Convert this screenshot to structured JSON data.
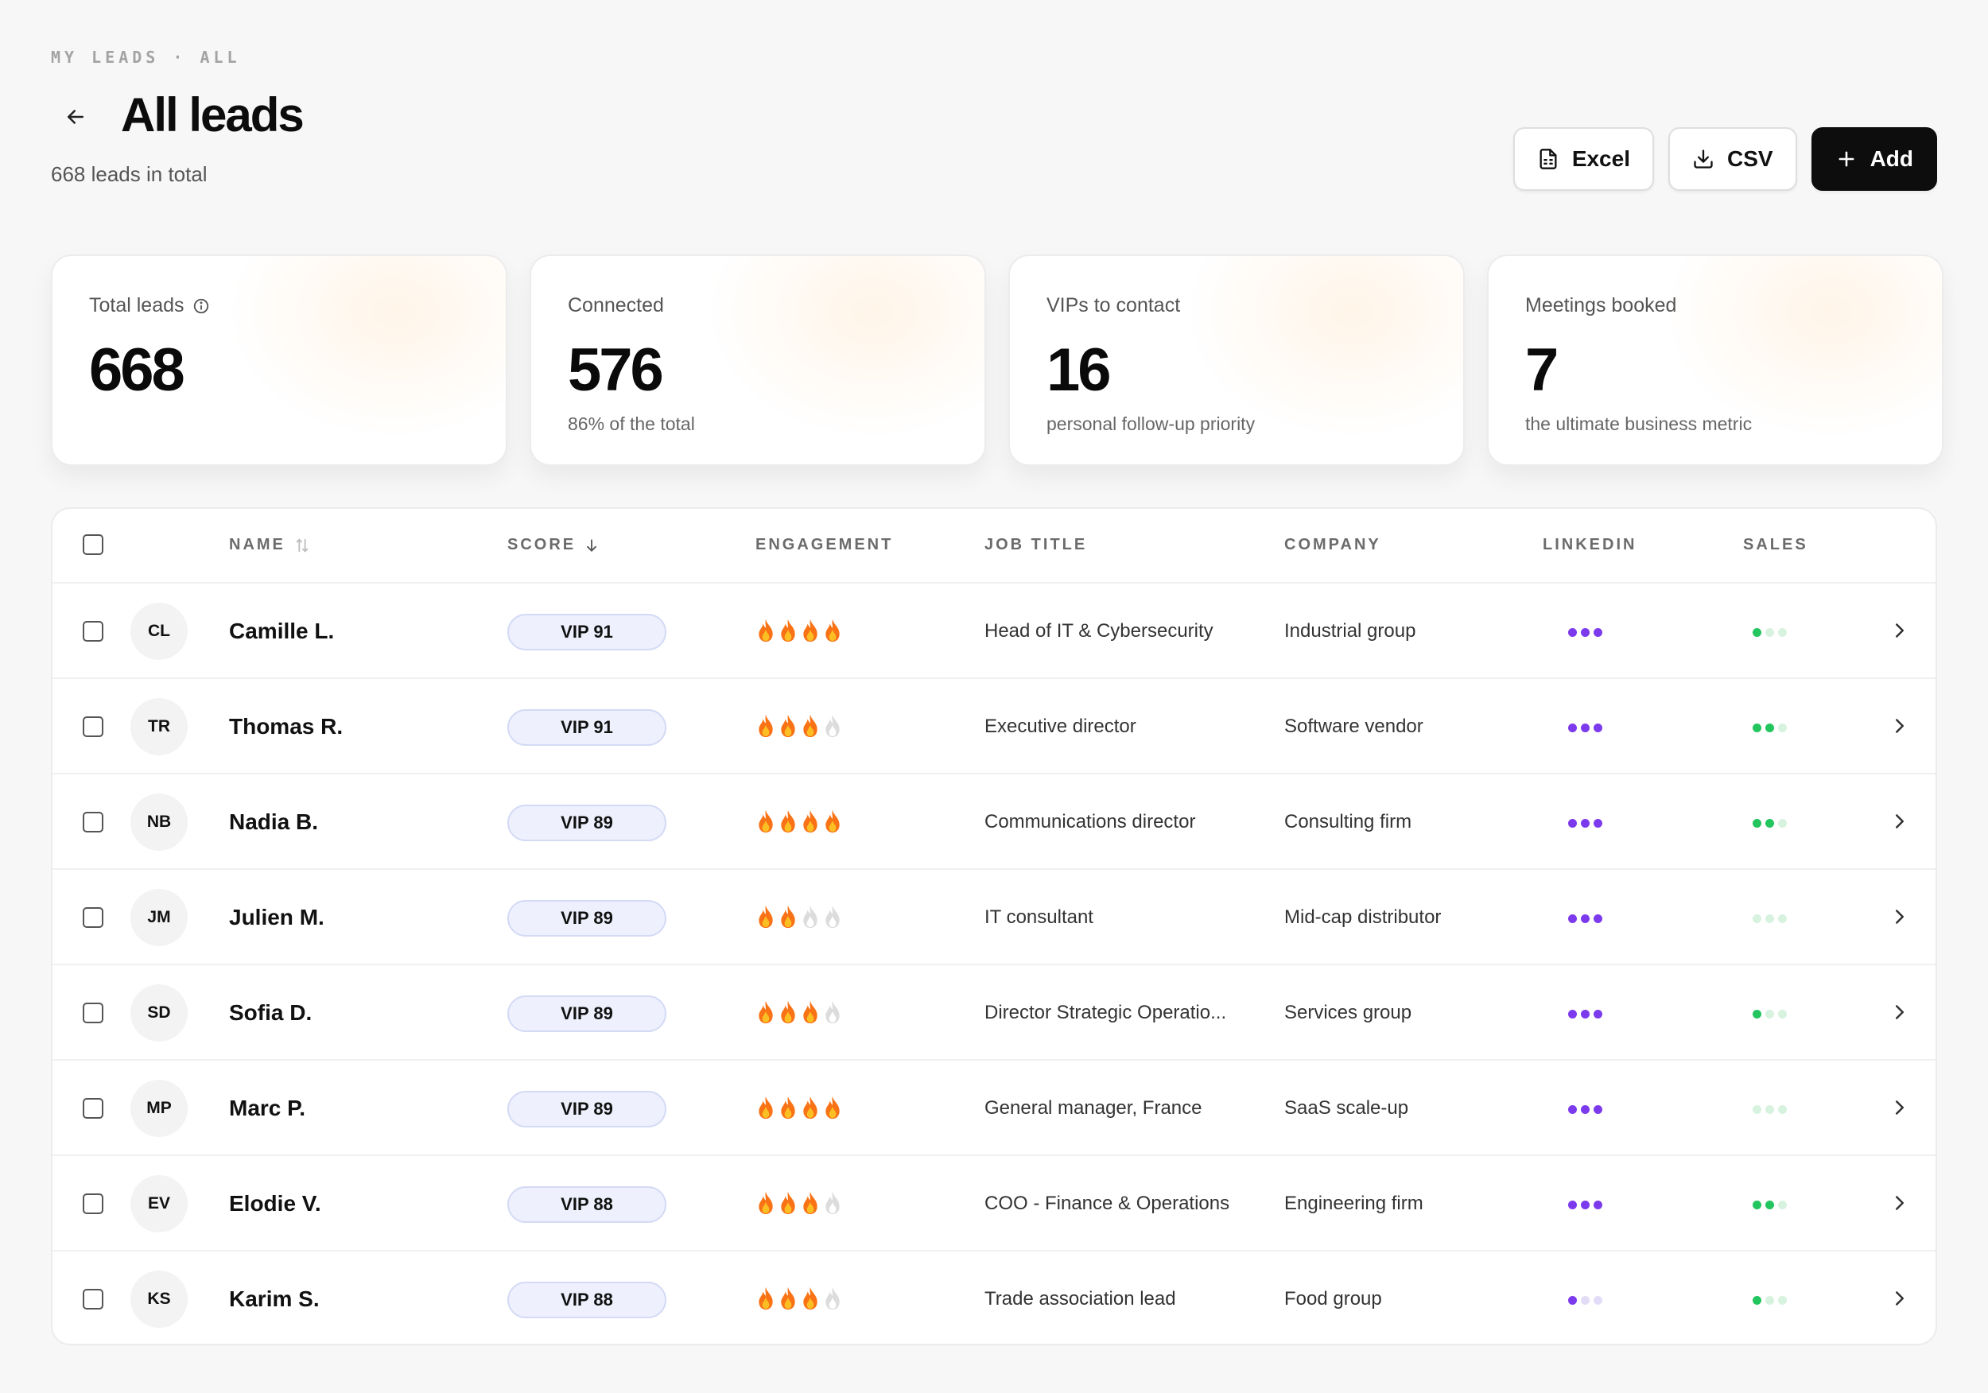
{
  "breadcrumb": "MY LEADS · ALL",
  "header": {
    "title": "All leads",
    "subtitle": "668 leads in total"
  },
  "actions": {
    "excel": "Excel",
    "csv": "CSV",
    "add": "Add"
  },
  "stats": [
    {
      "label": "Total leads",
      "value": "668",
      "note": ""
    },
    {
      "label": "Connected",
      "value": "576",
      "note": "86% of the total"
    },
    {
      "label": "VIPs to contact",
      "value": "16",
      "note": "personal follow-up priority"
    },
    {
      "label": "Meetings booked",
      "value": "7",
      "note": "the ultimate business metric"
    }
  ],
  "table": {
    "columns": {
      "name": "NAME",
      "score": "SCORE",
      "engagement": "ENGAGEMENT",
      "job": "JOB TITLE",
      "company": "COMPANY",
      "linkedin": "LINKEDIN",
      "sales": "SALES"
    },
    "rows": [
      {
        "initials": "CL",
        "name": "Camille L.",
        "score": "VIP 91",
        "engagement": 4,
        "job": "Head of IT & Cybersecurity",
        "company": "Industrial group",
        "linkedin": 3,
        "sales": 1
      },
      {
        "initials": "TR",
        "name": "Thomas R.",
        "score": "VIP 91",
        "engagement": 3,
        "job": "Executive director",
        "company": "Software vendor",
        "linkedin": 3,
        "sales": 2
      },
      {
        "initials": "NB",
        "name": "Nadia B.",
        "score": "VIP 89",
        "engagement": 4,
        "job": "Communications director",
        "company": "Consulting firm",
        "linkedin": 3,
        "sales": 2
      },
      {
        "initials": "JM",
        "name": "Julien M.",
        "score": "VIP 89",
        "engagement": 2,
        "job": "IT consultant",
        "company": "Mid-cap distributor",
        "linkedin": 3,
        "sales": 0
      },
      {
        "initials": "SD",
        "name": "Sofia D.",
        "score": "VIP 89",
        "engagement": 3,
        "job": "Director Strategic Operatio...",
        "company": "Services group",
        "linkedin": 3,
        "sales": 1
      },
      {
        "initials": "MP",
        "name": "Marc P.",
        "score": "VIP 89",
        "engagement": 4,
        "job": "General manager, France",
        "company": "SaaS scale-up",
        "linkedin": 3,
        "sales": 0
      },
      {
        "initials": "EV",
        "name": "Elodie V.",
        "score": "VIP 88",
        "engagement": 3,
        "job": "COO - Finance & Operations",
        "company": "Engineering firm",
        "linkedin": 3,
        "sales": 2
      },
      {
        "initials": "KS",
        "name": "Karim S.",
        "score": "VIP 88",
        "engagement": 3,
        "job": "Trade association lead",
        "company": "Food group",
        "linkedin": 1,
        "sales": 1
      }
    ]
  },
  "colors": {
    "linkedin_on": "#7c3aed",
    "linkedin_off": "#e3dcf7",
    "sales_on": "#22c55e",
    "sales_off": "#d7f2df",
    "flame_outer": "#f97316",
    "flame_inner": "#fbbf24",
    "flame_off": "#dcdcdc"
  }
}
